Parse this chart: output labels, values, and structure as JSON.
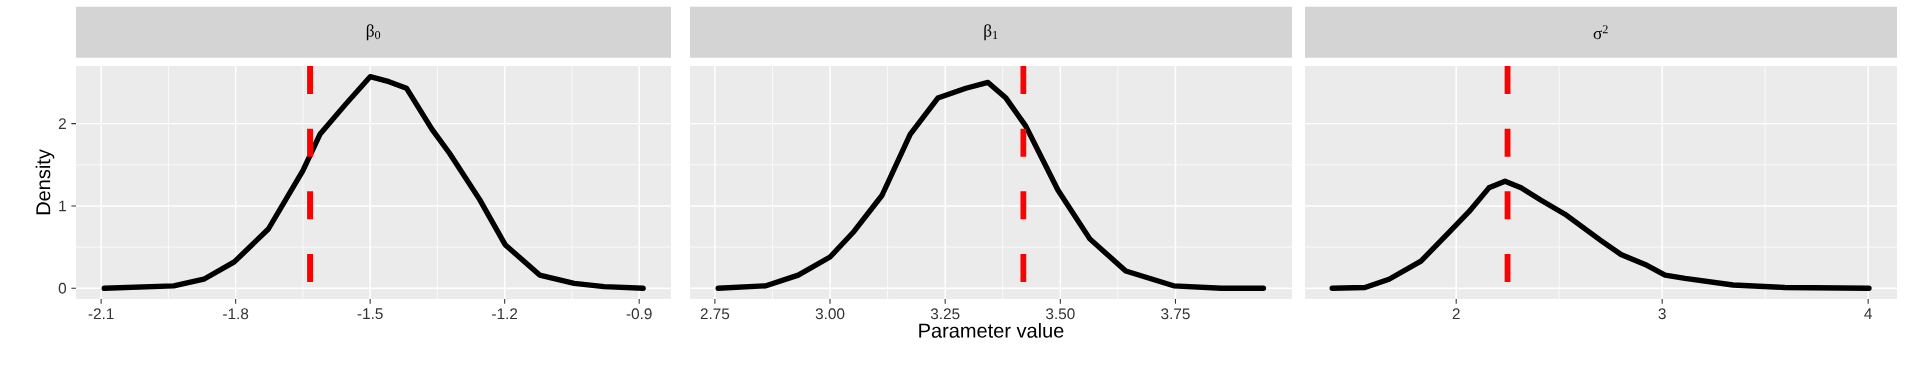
{
  "chart_data": [
    {
      "type": "line",
      "title": "β$_{0}$",
      "ylabel": "Density",
      "color": "#000000",
      "grid": true,
      "x": [
        -2.093,
        -1.938,
        -1.871,
        -1.803,
        -1.727,
        -1.65,
        -1.612,
        -1.554,
        -1.5,
        -1.458,
        -1.419,
        -1.362,
        -1.323,
        -1.256,
        -1.199,
        -1.122,
        -1.045,
        -0.978,
        -0.891
      ],
      "values": [
        0,
        0.03,
        0.11,
        0.32,
        0.72,
        1.43,
        1.87,
        2.24,
        2.57,
        2.51,
        2.43,
        1.93,
        1.64,
        1.08,
        0.53,
        0.16,
        0.06,
        0.02,
        0
      ],
      "xlim": [
        -2.156,
        -0.829
      ],
      "ylim": [
        -0.13,
        2.7
      ],
      "xticks": [
        -2.1,
        -1.8,
        -1.5,
        -1.2,
        -0.9
      ],
      "yticks": [
        0,
        1,
        2
      ],
      "ref_lines": [
        {
          "axis": "x",
          "value": -1.634,
          "color": "#ff0000",
          "line_style": "dashed"
        }
      ]
    },
    {
      "type": "line",
      "title": "β$_{1}$",
      "xlabel": "Parameter value",
      "color": "#000000",
      "grid": true,
      "tick_labels": "x",
      "x": [
        2.757,
        2.861,
        2.931,
        3.0,
        3.052,
        3.113,
        3.174,
        3.234,
        3.295,
        3.343,
        3.382,
        3.425,
        3.495,
        3.564,
        3.642,
        3.746,
        3.85,
        3.941
      ],
      "values": [
        0,
        0.03,
        0.16,
        0.38,
        0.69,
        1.13,
        1.87,
        2.31,
        2.43,
        2.5,
        2.31,
        1.97,
        1.19,
        0.6,
        0.21,
        0.03,
        0,
        0
      ],
      "xlim": [
        2.696,
        4.003
      ],
      "ylim": [
        -0.13,
        2.7
      ],
      "xticks": [
        {
          "value": 2.75,
          "label": "2.75"
        },
        {
          "value": 3,
          "label": "3.00"
        },
        {
          "value": 3.25,
          "label": "3.25"
        },
        {
          "value": 3.5,
          "label": "3.50"
        },
        {
          "value": 3.75,
          "label": "3.75"
        }
      ],
      "yticks": [
        {
          "value": 0,
          "label": null
        },
        {
          "value": 1,
          "label": null
        },
        {
          "value": 2,
          "label": null
        }
      ],
      "ref_lines": [
        {
          "axis": "x",
          "value": 3.42,
          "color": "#ff0000",
          "line_style": "dashed"
        }
      ]
    },
    {
      "type": "line",
      "title": "σ$^{2}$",
      "color": "#000000",
      "grid": true,
      "tick_labels": "x",
      "x": [
        1.398,
        1.557,
        1.674,
        1.829,
        1.965,
        2.062,
        2.159,
        2.237,
        2.315,
        2.412,
        2.528,
        2.703,
        2.8,
        2.917,
        3.014,
        3.111,
        3.344,
        3.596,
        4.004
      ],
      "values": [
        0,
        0.01,
        0.11,
        0.33,
        0.68,
        0.93,
        1.22,
        1.3,
        1.22,
        1.07,
        0.9,
        0.58,
        0.41,
        0.29,
        0.16,
        0.12,
        0.04,
        0.01,
        0
      ],
      "xlim": [
        1.266,
        4.14
      ],
      "ylim": [
        -0.13,
        2.7
      ],
      "xticks": [
        2,
        3,
        4
      ],
      "yticks": [
        {
          "value": 0,
          "label": null
        },
        {
          "value": 1,
          "label": null
        },
        {
          "value": 2,
          "label": null
        }
      ],
      "ref_lines": [
        {
          "axis": "x",
          "value": 2.249,
          "color": "#ff0000",
          "line_style": "dashed"
        }
      ]
    }
  ]
}
